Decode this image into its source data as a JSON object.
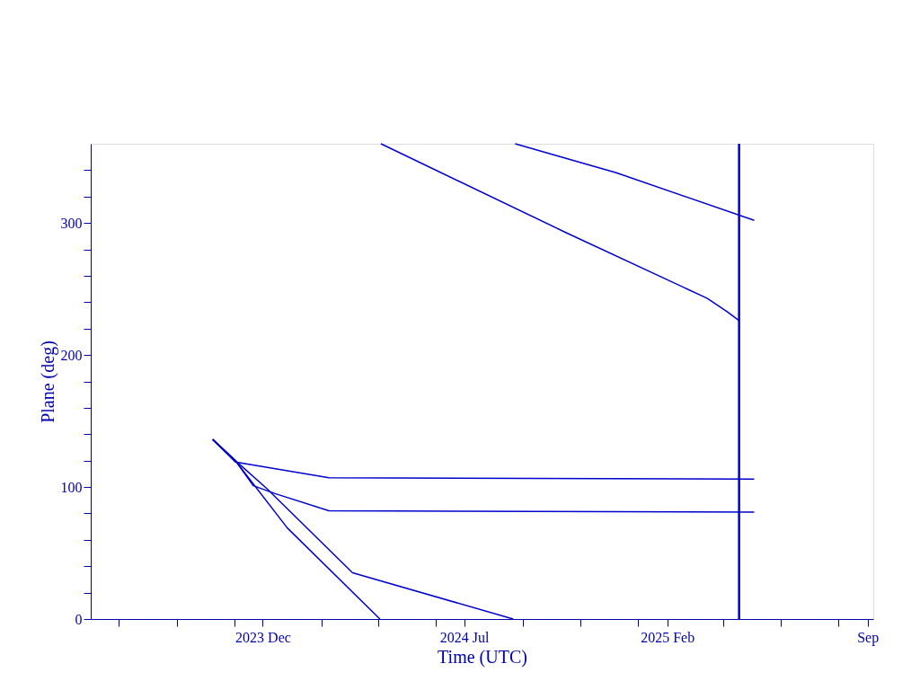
{
  "chart_data": {
    "type": "line",
    "xlabel": "Time (UTC)",
    "ylabel": "Plane (deg)",
    "xlim": [
      "2023-06-02",
      "2025-09-07"
    ],
    "xticks": [
      {
        "value": "2023-07-01",
        "label": null
      },
      {
        "value": "2023-09-01",
        "label": null
      },
      {
        "value": "2023-11-01",
        "label": null
      },
      {
        "value": "2023-12-01",
        "label": "2023 Dec"
      },
      {
        "value": "2024-02-01",
        "label": null
      },
      {
        "value": "2024-04-01",
        "label": null
      },
      {
        "value": "2024-06-01",
        "label": null
      },
      {
        "value": "2024-07-01",
        "label": "2024 Jul"
      },
      {
        "value": "2024-09-01",
        "label": null
      },
      {
        "value": "2024-11-01",
        "label": null
      },
      {
        "value": "2025-01-01",
        "label": null
      },
      {
        "value": "2025-02-01",
        "label": "2025 Feb"
      },
      {
        "value": "2025-04-01",
        "label": null
      },
      {
        "value": "2025-06-01",
        "label": null
      },
      {
        "value": "2025-08-01",
        "label": null
      },
      {
        "value": "2025-09-01",
        "label": "Sep"
      }
    ],
    "ylim": [
      0,
      360
    ],
    "yticks": [
      0,
      {
        "value": 20,
        "label": null
      },
      {
        "value": 40,
        "label": null
      },
      {
        "value": 60,
        "label": null
      },
      {
        "value": 80,
        "label": null
      },
      100,
      {
        "value": 120,
        "label": null
      },
      {
        "value": 140,
        "label": null
      },
      {
        "value": 160,
        "label": null
      },
      {
        "value": 180,
        "label": null
      },
      200,
      {
        "value": 220,
        "label": null
      },
      {
        "value": 240,
        "label": null
      },
      {
        "value": 260,
        "label": null
      },
      {
        "value": 280,
        "label": null
      },
      300,
      {
        "value": 320,
        "label": null
      },
      {
        "value": 340,
        "label": null
      }
    ],
    "grid": false,
    "marker": "none",
    "line_style": "solid",
    "series": [
      {
        "color": "#0000cc",
        "x": [
          "2023-10-09",
          "2023-11-02",
          "2024-02-09",
          "2025-05-04"
        ],
        "values": [
          136,
          119,
          107,
          106
        ]
      },
      {
        "color": "#0000cc",
        "x": [
          "2023-10-09",
          "2023-11-02",
          "2023-11-21",
          "2023-12-14",
          "2024-02-09",
          "2025-05-04"
        ],
        "values": [
          136,
          120,
          101,
          95,
          82,
          81
        ]
      },
      {
        "color": "#0000cc",
        "x": [
          "2023-10-09",
          "2023-11-02",
          "2023-12-05",
          "2024-03-05",
          "2024-08-22"
        ],
        "values": [
          136,
          120,
          99,
          35,
          0
        ]
      },
      {
        "color": "#0000cc",
        "x": [
          "2023-10-09",
          "2023-11-02",
          "2023-12-27",
          "2024-04-03"
        ],
        "values": [
          136,
          120,
          69,
          0
        ]
      },
      {
        "color": "#0000cc",
        "x": [
          "2024-04-04",
          "2024-10-16",
          "2025-03-15",
          "2025-04-05",
          "2025-04-18"
        ],
        "values": [
          360,
          293,
          243,
          233,
          226
        ]
      },
      {
        "color": "#0000cc",
        "x": [
          "2024-08-24",
          "2024-12-09",
          "2025-05-04"
        ],
        "values": [
          360,
          338,
          302
        ]
      }
    ],
    "ref_lines": [
      {
        "axis": "x",
        "value": "2025-04-18",
        "color": "#0000cc",
        "line_style": "solid"
      }
    ]
  }
}
